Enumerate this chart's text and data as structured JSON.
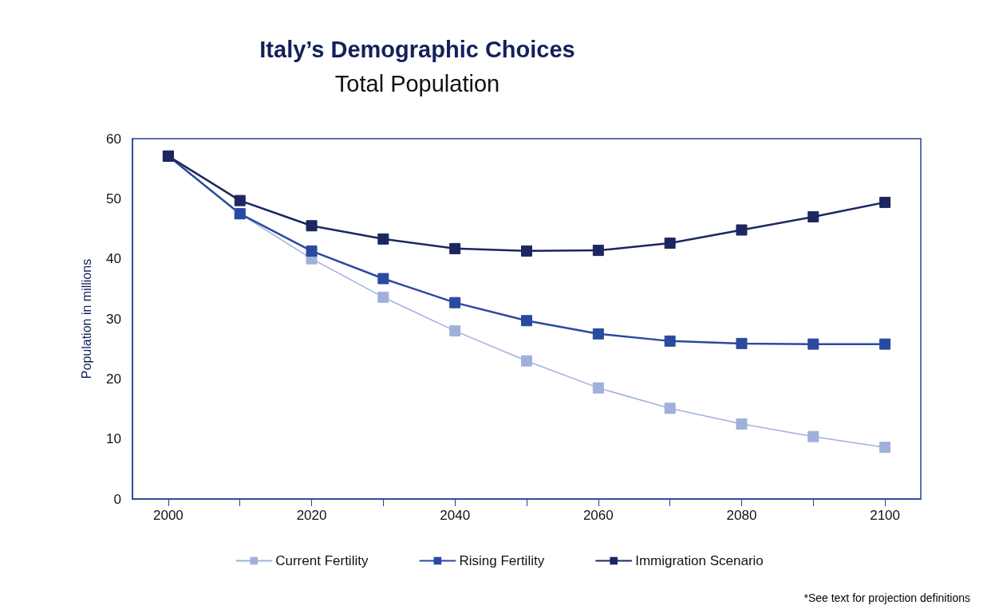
{
  "chart_data": {
    "type": "line",
    "title": "Italy’s Demographic Choices",
    "subtitle": "Total Population",
    "ylabel": "Population in millions",
    "x": [
      2000,
      2010,
      2020,
      2030,
      2040,
      2050,
      2060,
      2070,
      2080,
      2090,
      2100
    ],
    "xlim": [
      1995,
      2105
    ],
    "xticks": [
      2000,
      {
        "value": 2010,
        "label": null
      },
      2020,
      {
        "value": 2030,
        "label": null
      },
      2040,
      {
        "value": 2050,
        "label": null
      },
      2060,
      {
        "value": 2070,
        "label": null
      },
      2080,
      {
        "value": 2090,
        "label": null
      },
      2100
    ],
    "ylim": [
      0,
      60
    ],
    "yticks": [
      0,
      10,
      20,
      30,
      40,
      50,
      60
    ],
    "series": [
      {
        "name": "Current Fertility",
        "color": "#9fb0da",
        "values": [
          57.1,
          47.5,
          40.0,
          33.6,
          28.0,
          23.0,
          18.5,
          15.1,
          12.5,
          10.4,
          8.6
        ]
      },
      {
        "name": "Rising Fertility",
        "color": "#2a4aa0",
        "values": [
          57.1,
          47.5,
          41.3,
          36.7,
          32.7,
          29.7,
          27.5,
          26.3,
          25.9,
          25.8,
          25.8
        ]
      },
      {
        "name": "Immigration Scenario",
        "color": "#1c2660",
        "values": [
          57.1,
          49.7,
          45.5,
          43.3,
          41.7,
          41.3,
          41.4,
          42.6,
          44.8,
          47.0,
          49.4
        ]
      }
    ],
    "marker": "square",
    "legend": "bottom",
    "grid": false,
    "annotations": [
      "*See text for projection definitions"
    ]
  }
}
